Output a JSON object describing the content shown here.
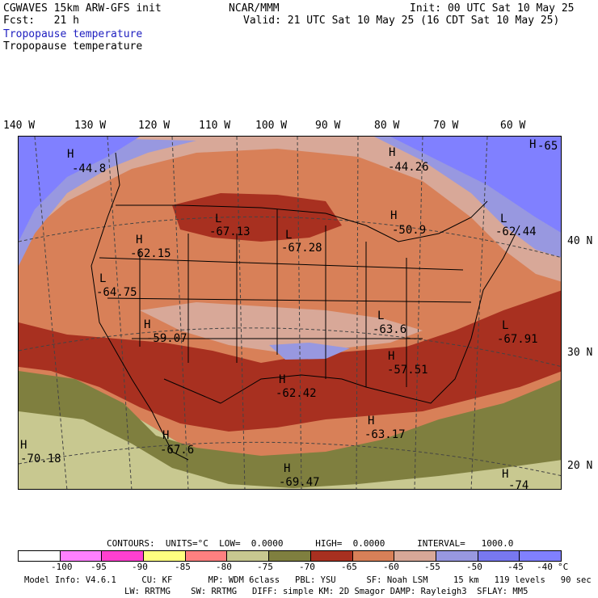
{
  "header": {
    "model": "CGWAVES 15km ARW-GFS init",
    "org": "NCAR/MMM",
    "init": "Init: 00 UTC Sat 10 May 25",
    "fcst": "Fcst:   21 h",
    "valid": "Valid: 21 UTC Sat 10 May 25 (16 CDT Sat 10 May 25)",
    "field_blue": "Tropopause temperature",
    "field_black": "Tropopause temperature"
  },
  "axes": {
    "lon_labels": [
      "140 W",
      "130 W",
      "120 W",
      "110 W",
      "100 W",
      "90 W",
      "80 W",
      "70 W",
      "60 W"
    ],
    "lat_labels": [
      "40 N",
      "30 N",
      "20 N"
    ]
  },
  "annotations": [
    {
      "mark": "H",
      "value": "-44.8"
    },
    {
      "mark": "H",
      "value": "-44.26"
    },
    {
      "mark": "H",
      "value": "-65"
    },
    {
      "mark": "L",
      "value": "-67.13"
    },
    {
      "mark": "L",
      "value": "-67.28"
    },
    {
      "mark": "H",
      "value": "-50.9"
    },
    {
      "mark": "L",
      "value": "-62.44"
    },
    {
      "mark": "H",
      "value": "-62.15"
    },
    {
      "mark": "L",
      "value": "-64.75"
    },
    {
      "mark": "H",
      "value": "-59.07"
    },
    {
      "mark": "L",
      "value": "-63.6"
    },
    {
      "mark": "L",
      "value": "-67.91"
    },
    {
      "mark": "H",
      "value": "-57.51"
    },
    {
      "mark": "H",
      "value": "-62.42"
    },
    {
      "mark": "H",
      "value": "-63.17"
    },
    {
      "mark": "H",
      "value": "-67.6"
    },
    {
      "mark": "H",
      "value": "-70.18"
    },
    {
      "mark": "H",
      "value": "-69.47"
    },
    {
      "mark": "H",
      "value": "-74"
    }
  ],
  "contours": {
    "text": "CONTOURS:  UNITS=°C  LOW=  0.0000      HIGH=  0.0000      INTERVAL=   1000.0"
  },
  "legend": {
    "colors": [
      "#ffffff",
      "#ff80ff",
      "#ff40d0",
      "#ffff80",
      "#ff8080",
      "#c8c890",
      "#7f7f3f",
      "#a83020",
      "#d88058",
      "#d8a898",
      "#9898e0",
      "#7878f0",
      "#8080ff"
    ],
    "ticks": [
      "-100",
      "-95",
      "-90",
      "-85",
      "-80",
      "-75",
      "-70",
      "-65",
      "-60",
      "-55",
      "-50",
      "-45",
      "-40",
      "°C"
    ]
  },
  "footer": {
    "line1": "Model Info: V4.6.1     CU: KF       MP: WDM 6class   PBL: YSU      SF: Noah LSM     15 km   119 levels   90 sec",
    "line2": "LW: RRTMG    SW: RRTMG   DIFF: simple KM: 2D Smagor DAMP: Rayleigh3  SFLAY: MM5"
  },
  "colors": {
    "cold_blue": "#8080ff",
    "mid_blue": "#9898e0",
    "pink": "#d8a898",
    "orange": "#d88058",
    "darkred": "#a83020",
    "olive": "#7f7f3f",
    "khaki": "#c8c890"
  }
}
